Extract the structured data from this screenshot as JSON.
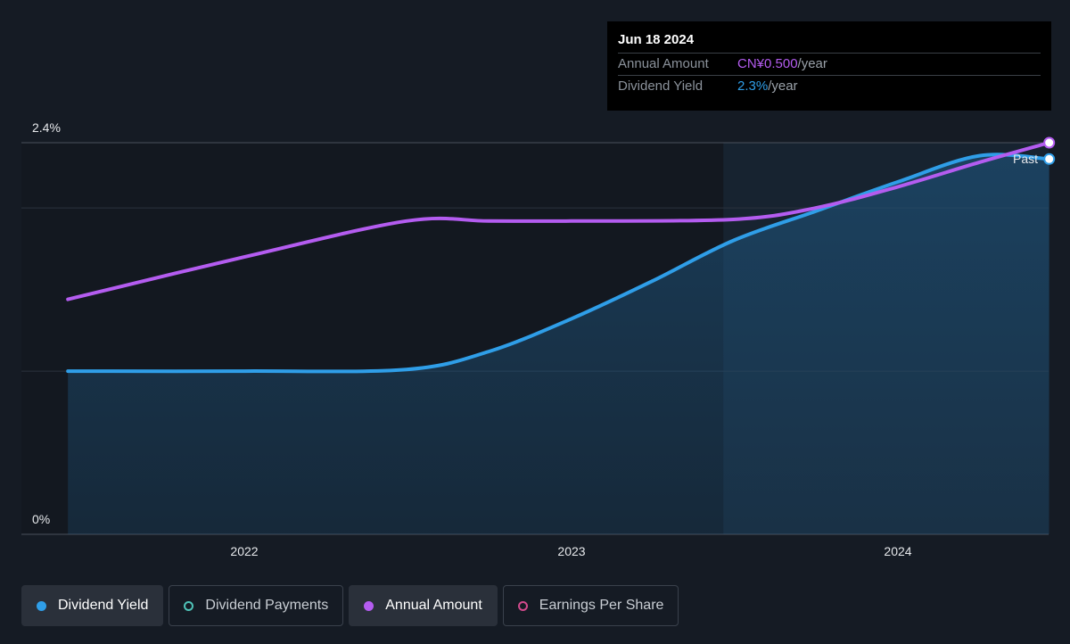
{
  "tooltip": {
    "date": "Jun 18 2024",
    "rows": [
      {
        "label": "Annual Amount",
        "value": "CN¥0.500",
        "unit": "/year"
      },
      {
        "label": "Dividend Yield",
        "value": "2.3%",
        "unit": "/year"
      }
    ]
  },
  "legend": [
    {
      "label": "Dividend Yield",
      "color": "#2f9ee8",
      "filled": true,
      "active": true
    },
    {
      "label": "Dividend Payments",
      "color": "#4fc3b8",
      "filled": false,
      "active": false
    },
    {
      "label": "Annual Amount",
      "color": "#b45cf0",
      "filled": true,
      "active": true
    },
    {
      "label": "Earnings Per Share",
      "color": "#d14a8c",
      "filled": false,
      "active": false
    }
  ],
  "chart_data": {
    "type": "line",
    "y_axis": {
      "ticks": [
        "0%",
        "2.4%"
      ],
      "min": 0,
      "max": 2.4,
      "unit": "%"
    },
    "x_axis": {
      "ticks": [
        "2022",
        "2023",
        "2024"
      ]
    },
    "past_label": "Past",
    "forecast_region_start": "2023-06-20",
    "end_date": "2024-06-18",
    "series": [
      {
        "name": "Dividend Yield",
        "color": "#2f9ee8",
        "area": true,
        "points": [
          [
            "2021-06-18",
            1.0
          ],
          [
            "2022-01-01",
            1.0
          ],
          [
            "2022-07-01",
            1.01
          ],
          [
            "2022-10-01",
            1.12
          ],
          [
            "2023-01-01",
            1.32
          ],
          [
            "2023-04-01",
            1.55
          ],
          [
            "2023-07-01",
            1.8
          ],
          [
            "2023-10-01",
            1.98
          ],
          [
            "2024-01-01",
            2.16
          ],
          [
            "2024-04-01",
            2.32
          ],
          [
            "2024-06-18",
            2.3
          ]
        ]
      },
      {
        "name": "Annual Amount",
        "color": "#b45cf0",
        "area": false,
        "points": [
          [
            "2021-06-18",
            1.44
          ],
          [
            "2022-01-01",
            1.7
          ],
          [
            "2022-07-01",
            1.92
          ],
          [
            "2022-10-01",
            1.92
          ],
          [
            "2023-01-01",
            1.92
          ],
          [
            "2023-07-01",
            1.93
          ],
          [
            "2023-10-01",
            2.0
          ],
          [
            "2024-01-01",
            2.13
          ],
          [
            "2024-04-01",
            2.28
          ],
          [
            "2024-06-18",
            2.4
          ]
        ]
      }
    ]
  }
}
